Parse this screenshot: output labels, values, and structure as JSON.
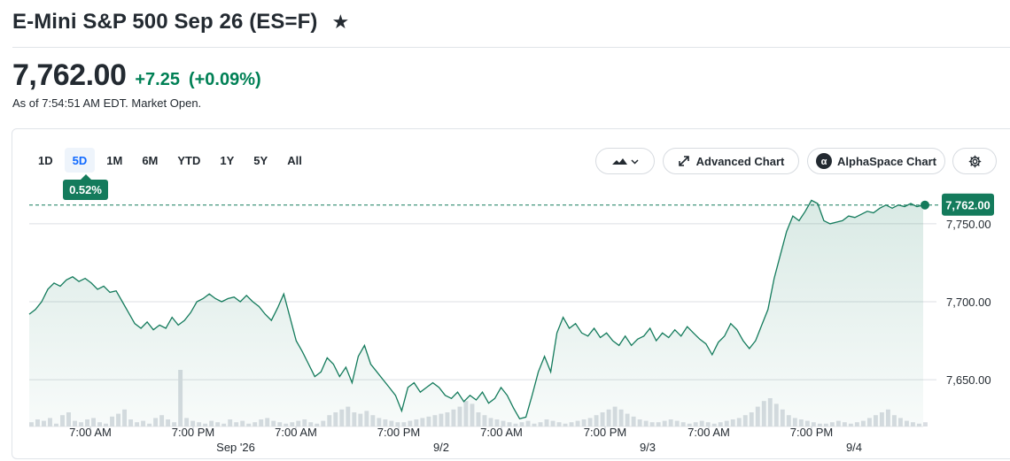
{
  "header": {
    "title": "E-Mini S&P 500 Sep 26 (ES=F)",
    "star_icon": "star-icon"
  },
  "quote": {
    "price": "7,762.00",
    "change": "+7.25",
    "change_pct": "(+0.09%)",
    "as_of": "As of 7:54:51 AM EDT. Market Open.",
    "color_up": "#008055"
  },
  "range_tabs": [
    "1D",
    "5D",
    "1M",
    "6M",
    "YTD",
    "1Y",
    "5Y",
    "All"
  ],
  "active_tab": "5D",
  "period_change_badge": "0.52%",
  "toolbar": {
    "chart_type_icon": "mountain-chart-icon",
    "advanced_label": "Advanced Chart",
    "alphaspace_label": "AlphaSpace Chart",
    "settings_icon": "gear-icon"
  },
  "chart_data": {
    "type": "area",
    "ylim": [
      7620,
      7780
    ],
    "y_ticks": [
      7650,
      7700,
      7750
    ],
    "y_tick_labels": [
      "7,650.00",
      "7,700.00",
      "7,750.00"
    ],
    "x_tick_labels": [
      "7:00 AM",
      "7:00 PM",
      "7:00 AM",
      "7:00 PM",
      "7:00 AM",
      "7:00 PM",
      "7:00 AM",
      "7:00 PM"
    ],
    "x_date_labels": [
      "Sep '26",
      "9/2",
      "9/3",
      "9/4"
    ],
    "last_price_label": "7,762.00",
    "reference_line": 7762,
    "line_color": "#147b5c",
    "series": [
      {
        "values": [
          7692,
          7695,
          7700,
          7708,
          7712,
          7710,
          7714,
          7716,
          7713,
          7715,
          7712,
          7708,
          7710,
          7706,
          7707,
          7700,
          7693,
          7686,
          7683,
          7687,
          7682,
          7685,
          7683,
          7690,
          7685,
          7688,
          7693,
          7700,
          7702,
          7705,
          7702,
          7700,
          7702,
          7703,
          7700,
          7704,
          7700,
          7697,
          7692,
          7688,
          7696,
          7705,
          7690,
          7675,
          7668,
          7660,
          7652,
          7655,
          7664,
          7660,
          7652,
          7658,
          7648,
          7665,
          7672,
          7660,
          7655,
          7650,
          7645,
          7640,
          7630,
          7645,
          7648,
          7642,
          7645,
          7648,
          7645,
          7640,
          7638,
          7642,
          7636,
          7640,
          7637,
          7642,
          7635,
          7638,
          7645,
          7640,
          7632,
          7625,
          7626,
          7640,
          7655,
          7665,
          7655,
          7680,
          7690,
          7683,
          7686,
          7680,
          7678,
          7683,
          7677,
          7680,
          7675,
          7672,
          7678,
          7672,
          7676,
          7678,
          7683,
          7675,
          7680,
          7677,
          7682,
          7678,
          7684,
          7680,
          7676,
          7673,
          7666,
          7674,
          7678,
          7686,
          7682,
          7675,
          7670,
          7675,
          7685,
          7695,
          7715,
          7730,
          7745,
          7755,
          7752,
          7758,
          7765,
          7763,
          7752,
          7750,
          7751,
          7752,
          7755,
          7754,
          7756,
          7758,
          7757,
          7760,
          7762,
          7760,
          7762,
          7761,
          7763,
          7761,
          7762
        ]
      }
    ],
    "volume_bars": [
      3,
      5,
      4,
      6,
      2,
      8,
      10,
      4,
      3,
      5,
      6,
      3,
      2,
      7,
      9,
      12,
      5,
      3,
      4,
      2,
      6,
      8,
      5,
      3,
      40,
      6,
      4,
      3,
      2,
      4,
      3,
      2,
      5,
      3,
      4,
      2,
      3,
      5,
      6,
      4,
      3,
      2,
      3,
      4,
      5,
      3,
      2,
      4,
      8,
      10,
      12,
      14,
      10,
      9,
      11,
      8,
      6,
      5,
      4,
      3,
      3,
      4,
      5,
      6,
      7,
      8,
      9,
      10,
      12,
      14,
      18,
      16,
      10,
      8,
      6,
      5,
      4,
      3,
      2,
      3,
      4,
      2,
      3,
      5,
      4,
      3,
      2,
      3,
      4,
      5,
      6,
      8,
      10,
      12,
      14,
      12,
      9,
      7,
      5,
      4,
      3,
      3,
      4,
      5,
      4,
      3,
      2,
      3,
      4,
      3,
      2,
      3,
      4,
      5,
      6,
      8,
      10,
      14,
      18,
      20,
      16,
      12,
      8,
      6,
      5,
      4,
      3,
      2,
      2,
      3,
      4,
      3,
      2,
      3,
      4,
      6,
      8,
      10,
      12,
      8,
      6,
      4,
      3,
      2,
      3
    ]
  }
}
